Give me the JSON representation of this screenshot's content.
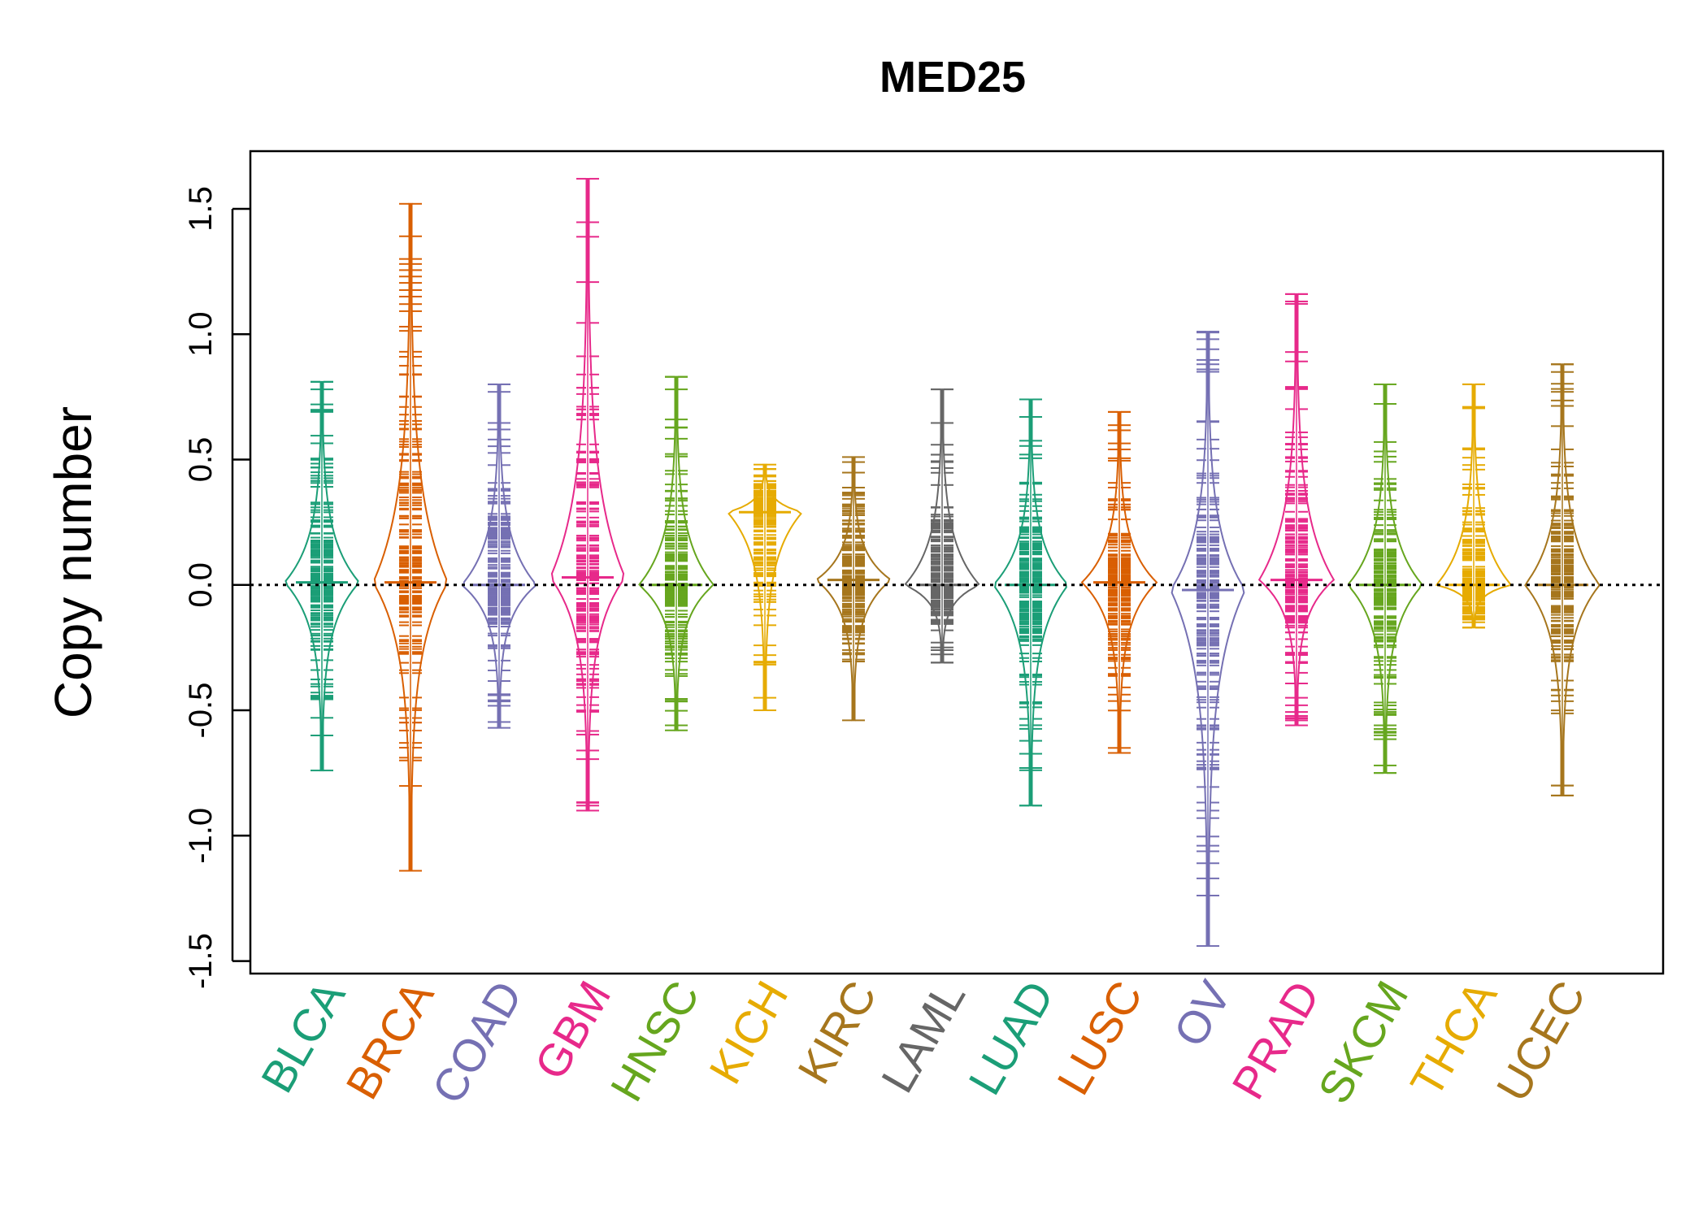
{
  "chart_data": {
    "type": "beanplot",
    "title": "MED25",
    "xlabel": "",
    "ylabel": "Copy number",
    "ylim": [
      -1.55,
      1.73
    ],
    "yticks": [
      -1.5,
      -1.0,
      -0.5,
      0.0,
      0.5,
      1.0,
      1.5
    ],
    "ytick_labels": [
      "-1.5",
      "-1.0",
      "-0.5",
      "0.0",
      "0.5",
      "1.0",
      "1.5"
    ],
    "reference_line": 0.0,
    "grid": false,
    "legend": "none",
    "categories": [
      "BLCA",
      "BRCA",
      "COAD",
      "GBM",
      "HNSC",
      "KICH",
      "KIRC",
      "LAML",
      "LUAD",
      "LUSC",
      "OV",
      "PRAD",
      "SKCM",
      "THCA",
      "UCEC"
    ],
    "series": [
      {
        "name": "BLCA",
        "color": "#1B9E77",
        "min": -0.74,
        "max": 0.81,
        "median": 0.01,
        "outliers": [
          0.81,
          0.78,
          0.72,
          0.69,
          -0.53,
          -0.74
        ]
      },
      {
        "name": "BRCA",
        "color": "#D95F02",
        "min": -1.14,
        "max": 1.52,
        "median": 0.01,
        "outliers": [
          1.52,
          1.3,
          1.28,
          1.23,
          1.15,
          1.12,
          1.03,
          0.93,
          0.91,
          0.75,
          -0.63,
          -0.7,
          -1.14
        ]
      },
      {
        "name": "COAD",
        "color": "#7570B3",
        "min": -0.57,
        "max": 0.8,
        "median": 0.0,
        "outliers": [
          0.8,
          0.77,
          0.62,
          0.58,
          -0.44,
          -0.46,
          -0.57
        ]
      },
      {
        "name": "GBM",
        "color": "#E7298A",
        "min": -0.9,
        "max": 1.62,
        "median": 0.03,
        "outliers": [
          1.62,
          0.7,
          -0.88,
          -0.9
        ]
      },
      {
        "name": "HNSC",
        "color": "#66A61E",
        "min": -0.58,
        "max": 0.83,
        "median": 0.0,
        "outliers": [
          0.83,
          0.66,
          -0.56,
          -0.58
        ]
      },
      {
        "name": "KICH",
        "color": "#E6AB02",
        "min": -0.5,
        "max": 0.48,
        "median": 0.29,
        "outliers": [
          -0.28,
          -0.45,
          -0.5
        ]
      },
      {
        "name": "KIRC",
        "color": "#A6761D",
        "min": -0.54,
        "max": 0.51,
        "median": 0.02,
        "outliers": [
          0.51,
          0.49,
          -0.2,
          -0.54
        ]
      },
      {
        "name": "LAML",
        "color": "#666666",
        "min": -0.31,
        "max": 0.78,
        "median": 0.0,
        "outliers": [
          0.78,
          0.49,
          0.31,
          -0.26,
          -0.31
        ]
      },
      {
        "name": "LUAD",
        "color": "#1B9E77",
        "min": -0.88,
        "max": 0.74,
        "median": 0.0,
        "outliers": [
          0.74,
          0.52,
          -0.73,
          -0.88
        ]
      },
      {
        "name": "LUSC",
        "color": "#D95F02",
        "min": -0.67,
        "max": 0.69,
        "median": 0.01,
        "outliers": [
          0.69,
          -0.65,
          -0.67
        ]
      },
      {
        "name": "OV",
        "color": "#7570B3",
        "min": -1.44,
        "max": 1.01,
        "median": -0.02,
        "outliers": [
          1.01,
          0.98,
          0.94,
          0.88,
          0.85,
          0.65,
          -0.9,
          -0.93,
          -1.04,
          -1.11,
          -1.44
        ]
      },
      {
        "name": "PRAD",
        "color": "#E7298A",
        "min": -0.56,
        "max": 1.16,
        "median": 0.02,
        "outliers": [
          1.16,
          0.56,
          0.51,
          -0.45,
          -0.48,
          -0.53,
          -0.56
        ]
      },
      {
        "name": "SKCM",
        "color": "#66A61E",
        "min": -0.75,
        "max": 0.8,
        "median": 0.0,
        "outliers": [
          0.8,
          0.57,
          -0.56,
          -0.72,
          -0.75
        ]
      },
      {
        "name": "THCA",
        "color": "#E6AB02",
        "min": -0.17,
        "max": 0.8,
        "median": 0.0,
        "outliers": [
          0.8,
          0.46,
          0.28,
          -0.17
        ]
      },
      {
        "name": "UCEC",
        "color": "#A6761D",
        "min": -0.84,
        "max": 0.88,
        "median": 0.0,
        "outliers": [
          0.88,
          0.77,
          -0.8,
          -0.84
        ]
      }
    ]
  }
}
